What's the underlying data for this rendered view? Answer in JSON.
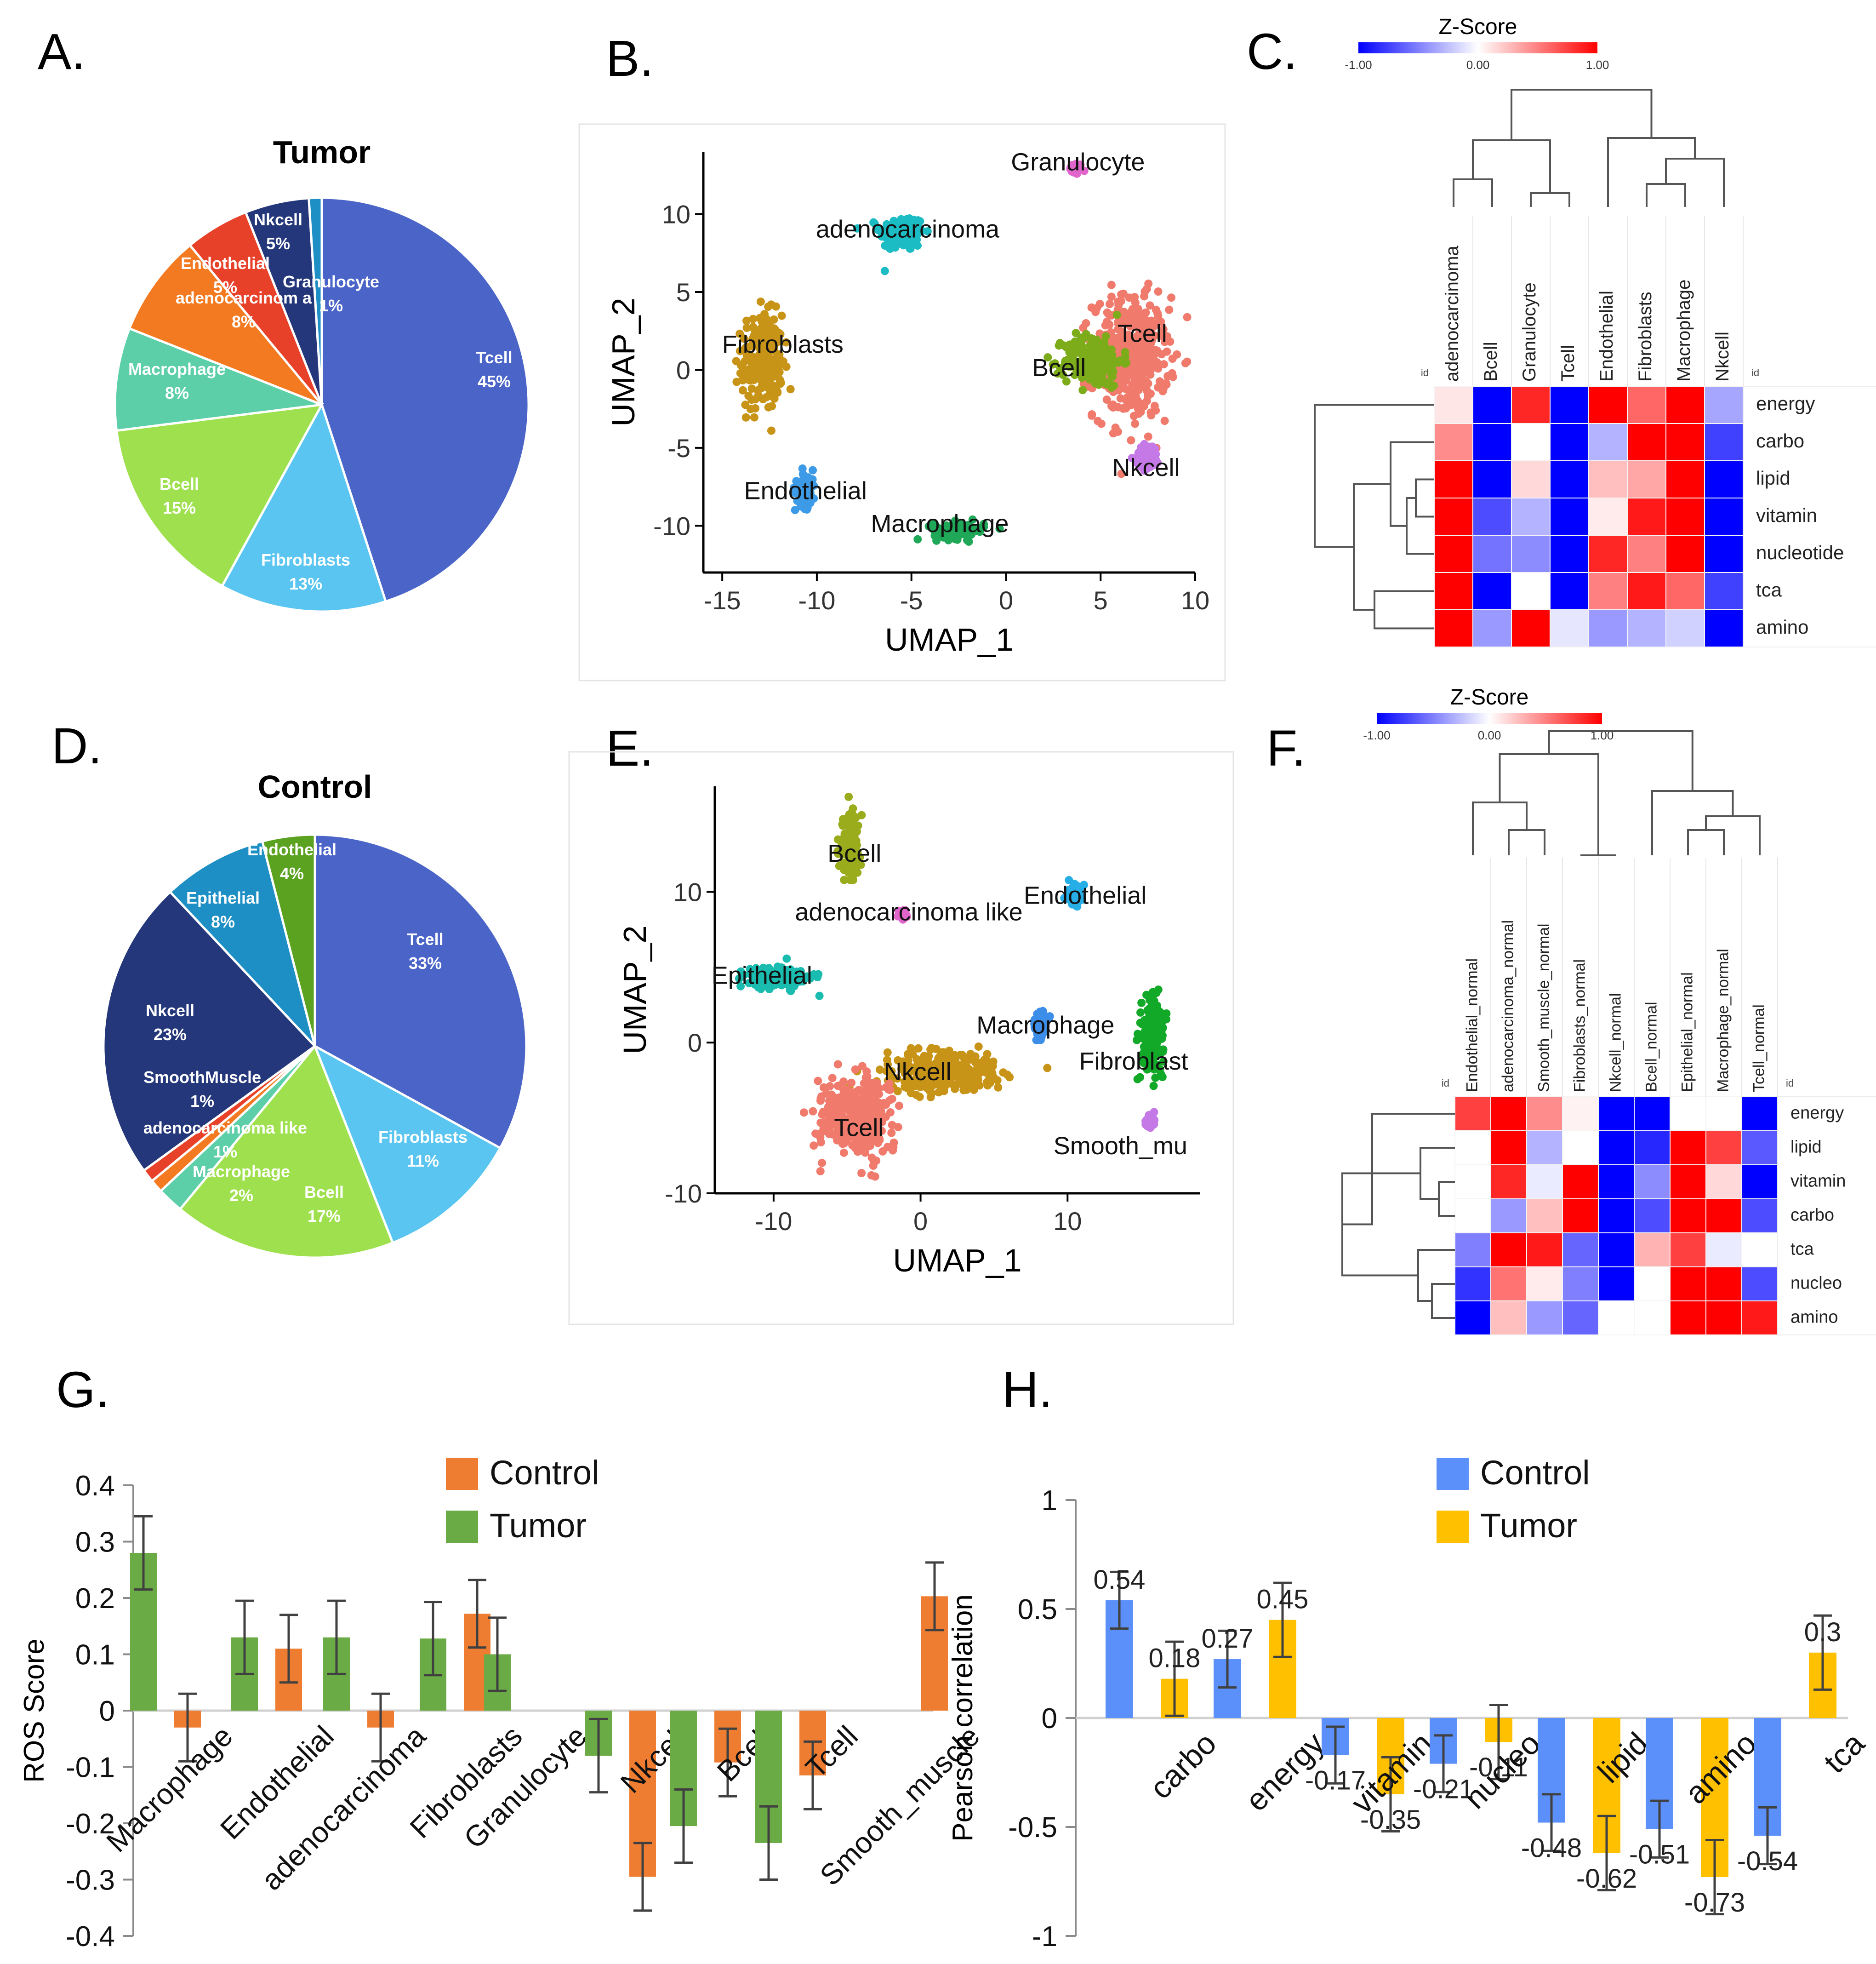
{
  "figure": {
    "panel_labels": [
      "A.",
      "B.",
      "C.",
      "D.",
      "E.",
      "F.",
      "G.",
      "H."
    ]
  },
  "chart_data": [
    {
      "id": "A",
      "type": "pie",
      "title": "Tumor",
      "slices": [
        {
          "label": "Tcell",
          "pct": "45%",
          "value": 45,
          "color": "#4a64c8"
        },
        {
          "label": "Fibroblasts",
          "pct": "13%",
          "value": 13,
          "color": "#59c5f0"
        },
        {
          "label": "Bcell",
          "pct": "15%",
          "value": 15,
          "color": "#9ee04e"
        },
        {
          "label": "Macrophage",
          "pct": "8%",
          "value": 8,
          "color": "#5ccfa8"
        },
        {
          "label": "adenocarcinom a",
          "pct": "8%",
          "value": 8,
          "color": "#f47a22"
        },
        {
          "label": "Endothelial",
          "pct": "5%",
          "value": 5,
          "color": "#e8412a"
        },
        {
          "label": "Nkcell",
          "pct": "5%",
          "value": 5,
          "color": "#24377a"
        },
        {
          "label": "Granulocyte",
          "pct": "1%",
          "value": 1,
          "color": "#1d8fc4"
        }
      ]
    },
    {
      "id": "B",
      "type": "scatter",
      "xlabel": "UMAP_1",
      "ylabel": "UMAP_2",
      "xlim": [
        -16,
        10
      ],
      "ylim": [
        -13,
        14
      ],
      "xticks": [
        -15,
        -10,
        -5,
        0,
        5,
        10
      ],
      "yticks": [
        10,
        5,
        0,
        -5,
        -10
      ],
      "clusters": [
        {
          "label": "Granulocyte",
          "x": 3.7,
          "y": 12.9,
          "sx": 0.35,
          "sy": 0.4,
          "color": "#e066cc",
          "lx": 3.8,
          "ly": 12.8
        },
        {
          "label": "adenocarcinoma",
          "x": -5.5,
          "y": 8.8,
          "sx": 1.3,
          "sy": 1.3,
          "color": "#1bbcc4",
          "lx": -5.2,
          "ly": 8.5
        },
        {
          "label": "Fibroblasts",
          "x": -12.9,
          "y": 0.5,
          "sx": 1.2,
          "sy": 3.4,
          "color": "#c89418",
          "lx": -11.8,
          "ly": 1.1
        },
        {
          "label": "Tcell",
          "x": 6.6,
          "y": 0.8,
          "sx": 2.2,
          "sy": 4.3,
          "color": "#f07a6c",
          "lx": 7.2,
          "ly": 1.8
        },
        {
          "label": "Bcell",
          "x": 4.6,
          "y": 0.6,
          "sx": 1.7,
          "sy": 1.9,
          "color": "#7cac1a",
          "lx": 2.8,
          "ly": -0.4
        },
        {
          "label": "Nkcell",
          "x": 7.5,
          "y": -5.6,
          "sx": 0.7,
          "sy": 0.9,
          "color": "#c479e6",
          "lx": 7.4,
          "ly": -6.8
        },
        {
          "label": "Endothelial",
          "x": -10.6,
          "y": -7.6,
          "sx": 0.6,
          "sy": 1.3,
          "color": "#3c9ae6",
          "lx": -10.6,
          "ly": -8.3
        },
        {
          "label": "Macrophage",
          "x": -2.5,
          "y": -10.3,
          "sx": 1.5,
          "sy": 0.6,
          "color": "#1fa858",
          "lx": -3.5,
          "ly": -10.4
        }
      ]
    },
    {
      "id": "C",
      "type": "heatmap",
      "legend_title": "Z-Score",
      "legend_ticks": [
        "-1.00",
        "0.00",
        "1.00"
      ],
      "id_label": "id",
      "columns": [
        "adenocarcinoma",
        "Bcell",
        "Granulocyte",
        "Tcell",
        "Endothelial",
        "Fibroblasts",
        "Macrophage",
        "Nkcell"
      ],
      "rows": [
        "energy",
        "carbo",
        "lipid",
        "vitamin",
        "nucleotide",
        "tca",
        "amino"
      ],
      "values": [
        [
          0.1,
          -1.0,
          0.85,
          -1.0,
          1.0,
          0.6,
          1.0,
          -0.35
        ],
        [
          0.45,
          -1.0,
          0.0,
          -1.0,
          -0.3,
          1.0,
          1.0,
          -0.75
        ],
        [
          1.0,
          -1.0,
          0.15,
          -1.0,
          0.25,
          0.35,
          1.0,
          -1.0
        ],
        [
          1.0,
          -0.7,
          -0.3,
          -1.0,
          0.08,
          0.9,
          1.0,
          -1.0
        ],
        [
          1.0,
          -0.55,
          -0.45,
          -1.0,
          0.85,
          0.5,
          1.0,
          -1.0
        ],
        [
          1.0,
          -1.0,
          0.0,
          -1.0,
          0.5,
          0.9,
          0.6,
          -0.75
        ],
        [
          1.0,
          -0.4,
          1.0,
          -0.1,
          -0.4,
          -0.3,
          -0.18,
          -1.0
        ]
      ]
    },
    {
      "id": "D",
      "type": "pie",
      "title": "Control",
      "slices": [
        {
          "label": "Tcell",
          "pct": "33%",
          "value": 33,
          "color": "#4a64c8"
        },
        {
          "label": "Fibroblasts",
          "pct": "11%",
          "value": 11,
          "color": "#59c5f0"
        },
        {
          "label": "Bcell",
          "pct": "17%",
          "value": 17,
          "color": "#9ee04e"
        },
        {
          "label": "Macrophage",
          "pct": "2%",
          "value": 2,
          "color": "#5ccfa8"
        },
        {
          "label": "adenocarcinoma like",
          "pct": "1%",
          "value": 1,
          "color": "#f47a22"
        },
        {
          "label": "SmoothMuscle",
          "pct": "1%",
          "value": 1,
          "color": "#e8412a"
        },
        {
          "label": "Nkcell",
          "pct": "23%",
          "value": 23,
          "color": "#24377a"
        },
        {
          "label": "Epithelial",
          "pct": "8%",
          "value": 8,
          "color": "#1d8fc4"
        },
        {
          "label": "Endothelial",
          "pct": "4%",
          "value": 4,
          "color": "#5aa220"
        }
      ]
    },
    {
      "id": "E",
      "type": "scatter",
      "xlabel": "UMAP_1",
      "ylabel": "UMAP_2",
      "xlim": [
        -14,
        19
      ],
      "ylim": [
        -10,
        17
      ],
      "xticks": [
        -10,
        0,
        10
      ],
      "yticks": [
        10,
        0,
        -10
      ],
      "clusters": [
        {
          "label": "Bcell",
          "x": -4.8,
          "y": 13.0,
          "sx": 0.8,
          "sy": 2.4,
          "color": "#9aac1c",
          "lx": -4.5,
          "ly": 12.0
        },
        {
          "label": "Endothelial",
          "x": 10.5,
          "y": 9.8,
          "sx": 0.7,
          "sy": 0.7,
          "color": "#27aee6",
          "lx": 11.2,
          "ly": 9.2
        },
        {
          "label": "adenocarcinoma like",
          "x": -1.2,
          "y": 8.5,
          "sx": 0.3,
          "sy": 0.3,
          "color": "#e066cc",
          "lx": -0.8,
          "ly": 8.1
        },
        {
          "label": "Epithelial",
          "x": -9.8,
          "y": 4.3,
          "sx": 2.4,
          "sy": 0.8,
          "color": "#1bbcb0",
          "lx": -10.8,
          "ly": 3.9
        },
        {
          "label": "Macrophage",
          "x": 8.2,
          "y": 1.2,
          "sx": 0.5,
          "sy": 0.8,
          "color": "#3c8ee8",
          "lx": 8.5,
          "ly": 0.6
        },
        {
          "label": "Fibroblast",
          "x": 15.8,
          "y": 0.5,
          "sx": 0.9,
          "sy": 3.0,
          "color": "#12a828",
          "lx": 14.5,
          "ly": -1.8
        },
        {
          "label": "Nkcell",
          "x": 1.5,
          "y": -2.0,
          "sx": 4.2,
          "sy": 1.5,
          "color": "#c89418",
          "lx": -0.2,
          "ly": -2.5
        },
        {
          "label": "Tcell",
          "x": -4.5,
          "y": -4.8,
          "sx": 2.6,
          "sy": 2.8,
          "color": "#f07a6c",
          "lx": -4.2,
          "ly": -6.2
        },
        {
          "label": "Smooth_mu",
          "x": 15.6,
          "y": -5.2,
          "sx": 0.3,
          "sy": 0.5,
          "color": "#c479e6",
          "lx": 13.6,
          "ly": -7.4
        }
      ]
    },
    {
      "id": "F",
      "type": "heatmap",
      "legend_title": "Z-Score",
      "legend_ticks": [
        "-1.00",
        "0.00",
        "1.00"
      ],
      "id_label": "id",
      "columns": [
        "Endothelial_normal",
        "adenocarcinoma_normal",
        "Smooth_muscle_normal",
        "Fibroblasts_normal",
        "Nkcell_normal",
        "Bcell_normal",
        "Epithelial_normal",
        "Macrophage_normal",
        "Tcell_normal"
      ],
      "rows": [
        "energy",
        "lipid",
        "vitamin",
        "carbo",
        "tca",
        "nucleo",
        "amino"
      ],
      "values": [
        [
          0.75,
          1.0,
          0.45,
          0.05,
          -1.0,
          -1.0,
          0.0,
          0.0,
          -1.0
        ],
        [
          0.0,
          1.0,
          -0.3,
          0.0,
          -1.0,
          -0.85,
          1.0,
          0.75,
          -0.65
        ],
        [
          0.0,
          0.85,
          -0.08,
          1.0,
          -1.0,
          -0.45,
          1.0,
          0.15,
          -1.0
        ],
        [
          0.0,
          -0.4,
          0.25,
          1.0,
          -1.0,
          -0.7,
          1.0,
          1.0,
          -0.7
        ],
        [
          -0.5,
          1.0,
          0.9,
          -0.6,
          -1.0,
          0.3,
          0.75,
          -0.08,
          0.0
        ],
        [
          -0.8,
          0.55,
          0.08,
          -0.5,
          -1.0,
          0.0,
          1.0,
          1.0,
          -0.7
        ],
        [
          -1.0,
          0.25,
          -0.4,
          -0.6,
          0.0,
          0.0,
          1.0,
          1.0,
          0.9
        ]
      ]
    },
    {
      "id": "G",
      "type": "bar",
      "ylabel": "ROS Score",
      "ylim": [
        -0.4,
        0.4
      ],
      "yticks": [
        0.4,
        0.3,
        0.2,
        0.1,
        0,
        -0.1,
        -0.2,
        -0.3,
        -0.4
      ],
      "ytick_labels": [
        "0.4",
        "0.3",
        "0.2",
        "0.1",
        "0",
        "-0.1",
        "-0.2",
        "-0.3",
        "-0.4"
      ],
      "categories": [
        "Macrophage",
        "Endothelial",
        "adenocarcinoma",
        "Fibroblasts",
        "Granulocyte",
        "Nkcell",
        "Bcell",
        "Tcell",
        "Smooth_muscle"
      ],
      "legend": "top-center",
      "series": [
        {
          "name": "Tumor",
          "color": "#6aab46",
          "values": [
            0.28,
            0.13,
            0.13,
            0.128,
            0.1,
            -0.08,
            -0.205,
            -0.235,
            null
          ],
          "errors": [
            0.065,
            0.065,
            0.065,
            0.065,
            0.065,
            0.065,
            0.065,
            0.065,
            null
          ]
        },
        {
          "name": "Control",
          "color": "#ee7d31",
          "values": [
            -0.03,
            0.11,
            -0.03,
            0.172,
            null,
            -0.295,
            -0.092,
            -0.115,
            0.203
          ],
          "errors": [
            0.06,
            0.06,
            0.06,
            0.06,
            null,
            0.06,
            0.06,
            0.06,
            0.06
          ]
        }
      ],
      "legend_order": [
        "Control",
        "Tumor"
      ]
    },
    {
      "id": "H",
      "type": "bar",
      "ylabel": "Pearson correlation",
      "ylim": [
        -1,
        1
      ],
      "yticks": [
        1,
        0.5,
        0,
        -0.5,
        -1
      ],
      "ytick_labels": [
        "1",
        "0.5",
        "0",
        "-0.5",
        "-1"
      ],
      "categories": [
        "carbo",
        "energy",
        "vitamin",
        "nucleo",
        "lipid",
        "amino",
        "tca"
      ],
      "legend": "top-center",
      "series": [
        {
          "name": "Control",
          "color": "#5b8ff9",
          "values": [
            0.54,
            0.27,
            -0.17,
            -0.21,
            -0.48,
            -0.51,
            -0.54
          ],
          "labels": [
            "0.54",
            "0.27",
            "-0.17",
            "-0.21",
            "-0.48",
            "-0.51",
            "-0.54"
          ],
          "errors": [
            0.13,
            0.13,
            0.13,
            0.13,
            0.13,
            0.13,
            0.13
          ]
        },
        {
          "name": "Tumor",
          "color": "#ffc000",
          "values": [
            0.18,
            0.45,
            -0.35,
            -0.11,
            -0.62,
            -0.73,
            0.3
          ],
          "labels": [
            "0.18",
            "0.45",
            "-0.35",
            "-0.11",
            "-0.62",
            "-0.73",
            "0.3"
          ],
          "errors": [
            0.17,
            0.17,
            0.17,
            0.17,
            0.17,
            0.17,
            0.17
          ]
        }
      ],
      "legend_order": [
        "Control",
        "Tumor"
      ]
    }
  ]
}
